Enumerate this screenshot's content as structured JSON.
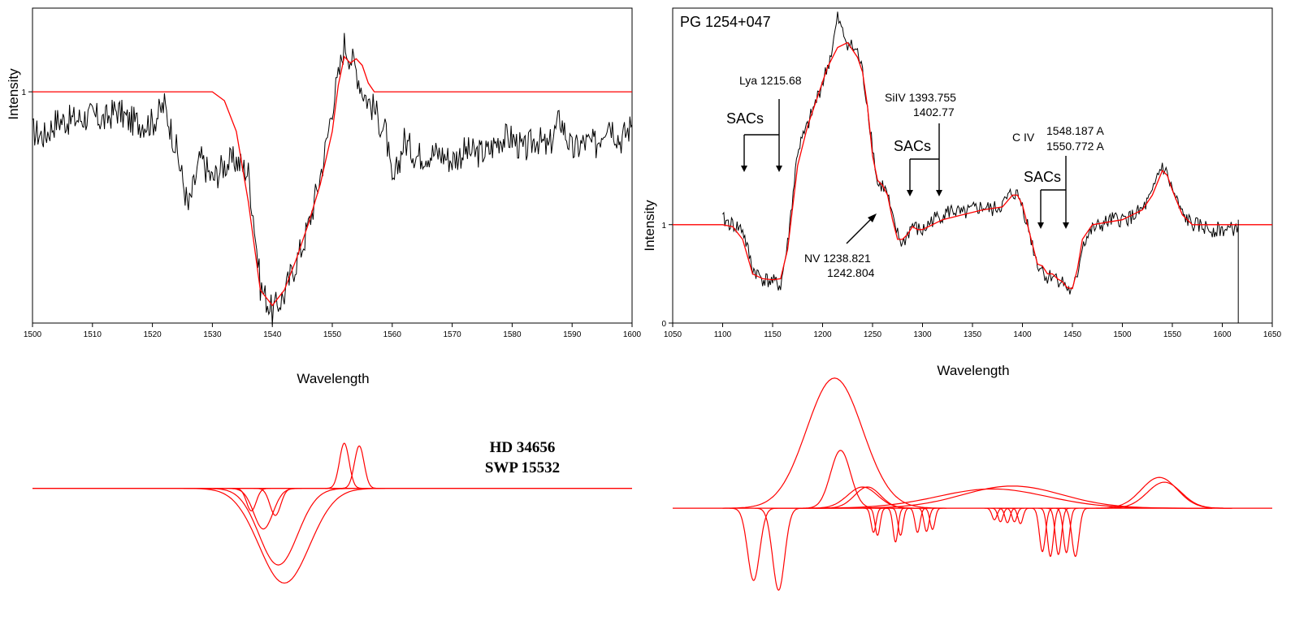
{
  "chart_data": [
    {
      "id": "left",
      "type": "line",
      "title": "",
      "xlabel": "Wavelength",
      "ylabel": "Intensity",
      "xlim": [
        1500,
        1600
      ],
      "x_ticks": [
        1500,
        1510,
        1520,
        1530,
        1540,
        1550,
        1560,
        1570,
        1580,
        1590,
        1600
      ],
      "y_ticks": [
        {
          "value": 1,
          "label": "1"
        }
      ],
      "series": [
        {
          "role": "observed",
          "color": "#000000",
          "x": [
            1500,
            1502,
            1504,
            1506,
            1508,
            1510,
            1512,
            1514,
            1516,
            1518,
            1520,
            1522,
            1524,
            1526,
            1528,
            1530,
            1532,
            1534,
            1536,
            1537,
            1538,
            1539,
            1540,
            1541,
            1542,
            1543,
            1544,
            1545,
            1546,
            1547,
            1548,
            1549,
            1550,
            1551,
            1552,
            1553,
            1554,
            1555,
            1556,
            1557,
            1558,
            1559,
            1560,
            1562,
            1564,
            1566,
            1568,
            1570,
            1572,
            1574,
            1576,
            1578,
            1580,
            1582,
            1584,
            1586,
            1588,
            1590,
            1592,
            1594,
            1596,
            1598,
            1600
          ],
          "y": [
            0.82,
            0.8,
            0.87,
            0.87,
            0.88,
            0.89,
            0.87,
            0.92,
            0.87,
            0.86,
            0.86,
            0.94,
            0.74,
            0.47,
            0.7,
            0.6,
            0.67,
            0.69,
            0.63,
            0.4,
            0.12,
            0.06,
            0.0,
            0.04,
            0.08,
            0.16,
            0.23,
            0.3,
            0.39,
            0.5,
            0.62,
            0.76,
            0.94,
            1.06,
            1.22,
            1.16,
            1.1,
            1.01,
            0.96,
            0.92,
            0.86,
            0.81,
            0.56,
            0.78,
            0.71,
            0.72,
            0.72,
            0.69,
            0.73,
            0.72,
            0.73,
            0.79,
            0.79,
            0.73,
            0.79,
            0.74,
            0.88,
            0.73,
            0.77,
            0.76,
            0.88,
            0.78,
            0.85
          ]
        },
        {
          "role": "model",
          "color": "#ff0000",
          "x": [
            1500,
            1530,
            1532,
            1534,
            1536,
            1538,
            1540,
            1542,
            1544,
            1546,
            1548,
            1550,
            1551,
            1552,
            1553,
            1554,
            1555,
            1556,
            1557,
            1600
          ],
          "y": [
            1.0,
            1.0,
            0.96,
            0.82,
            0.5,
            0.1,
            0.03,
            0.1,
            0.24,
            0.4,
            0.58,
            0.82,
            1.03,
            1.16,
            1.13,
            1.15,
            1.12,
            1.04,
            1.0,
            1.0
          ]
        }
      ]
    },
    {
      "id": "right",
      "type": "line",
      "title": "PG 1254+047",
      "xlabel": "Wavelength",
      "ylabel": "Intensity",
      "xlim": [
        1050,
        1650
      ],
      "ylim": [
        0,
        3.2
      ],
      "x_ticks": [
        1050,
        1100,
        1150,
        1200,
        1250,
        1300,
        1350,
        1400,
        1450,
        1500,
        1550,
        1600,
        1650
      ],
      "y_ticks": [
        {
          "value": 0,
          "label": "0"
        },
        {
          "value": 1,
          "label": "1"
        }
      ],
      "series": [
        {
          "role": "observed",
          "color": "#000000",
          "x": [
            1100,
            1110,
            1120,
            1130,
            1140,
            1150,
            1158,
            1165,
            1175,
            1185,
            1195,
            1205,
            1210,
            1215,
            1220,
            1225,
            1230,
            1235,
            1240,
            1245,
            1250,
            1255,
            1260,
            1265,
            1270,
            1275,
            1280,
            1285,
            1290,
            1295,
            1300,
            1310,
            1320,
            1330,
            1340,
            1350,
            1360,
            1370,
            1380,
            1390,
            1395,
            1400,
            1405,
            1410,
            1415,
            1420,
            1425,
            1430,
            1435,
            1440,
            1445,
            1450,
            1455,
            1460,
            1470,
            1480,
            1490,
            1500,
            1510,
            1520,
            1530,
            1535,
            1540,
            1545,
            1550,
            1560,
            1570,
            1580,
            1590,
            1600,
            1610,
            1616
          ],
          "y": [
            1.05,
            1.0,
            0.95,
            0.55,
            0.45,
            0.42,
            0.38,
            0.8,
            1.75,
            2.0,
            2.3,
            2.6,
            2.8,
            3.1,
            2.95,
            2.85,
            2.8,
            2.75,
            2.55,
            2.2,
            1.8,
            1.4,
            1.4,
            1.3,
            1.05,
            0.9,
            0.8,
            0.9,
            1.0,
            0.95,
            0.93,
            1.05,
            1.1,
            1.15,
            1.1,
            1.15,
            1.18,
            1.15,
            1.2,
            1.33,
            1.3,
            1.2,
            1.0,
            0.8,
            0.6,
            0.55,
            0.45,
            0.5,
            0.45,
            0.42,
            0.35,
            0.3,
            0.5,
            0.8,
            0.95,
            1.0,
            1.05,
            1.05,
            1.08,
            1.15,
            1.3,
            1.5,
            1.6,
            1.5,
            1.35,
            1.1,
            1.0,
            0.98,
            0.95,
            0.95,
            0.95,
            1.0
          ]
        },
        {
          "role": "model",
          "color": "#ff0000",
          "x": [
            1050,
            1100,
            1110,
            1120,
            1130,
            1140,
            1150,
            1158,
            1165,
            1175,
            1185,
            1195,
            1205,
            1215,
            1225,
            1235,
            1240,
            1245,
            1250,
            1255,
            1260,
            1265,
            1270,
            1275,
            1280,
            1285,
            1290,
            1295,
            1300,
            1320,
            1340,
            1360,
            1380,
            1390,
            1395,
            1400,
            1405,
            1410,
            1415,
            1420,
            1425,
            1430,
            1435,
            1440,
            1445,
            1450,
            1455,
            1460,
            1470,
            1500,
            1520,
            1530,
            1540,
            1545,
            1550,
            1560,
            1570,
            1650
          ],
          "y": [
            1.0,
            1.0,
            0.98,
            0.85,
            0.5,
            0.45,
            0.44,
            0.45,
            0.75,
            1.6,
            2.0,
            2.3,
            2.6,
            2.8,
            2.85,
            2.7,
            2.55,
            2.2,
            1.7,
            1.45,
            1.4,
            1.3,
            1.05,
            0.85,
            0.85,
            0.9,
            0.98,
            0.95,
            0.95,
            1.05,
            1.1,
            1.15,
            1.18,
            1.3,
            1.3,
            1.2,
            1.0,
            0.8,
            0.6,
            0.58,
            0.5,
            0.5,
            0.45,
            0.42,
            0.36,
            0.35,
            0.55,
            0.85,
            1.0,
            1.05,
            1.15,
            1.3,
            1.55,
            1.5,
            1.35,
            1.1,
            1.0,
            1.0
          ]
        }
      ]
    },
    {
      "id": "left-components",
      "type": "line",
      "note_labels": [
        "HD 34656",
        "SWP 15532"
      ],
      "xlim": [
        1500,
        1600
      ],
      "ylim": [
        -1.2,
        0.6
      ],
      "series": [
        {
          "role": "component",
          "color": "#ff0000",
          "kind": "absorption",
          "center": 1536.5,
          "depth": 0.25,
          "width": 0.8
        },
        {
          "role": "component",
          "color": "#ff0000",
          "kind": "absorption",
          "center": 1538.5,
          "depth": 0.45,
          "width": 1.6
        },
        {
          "role": "component",
          "color": "#ff0000",
          "kind": "absorption",
          "center": 1540.5,
          "depth": 0.3,
          "width": 0.9
        },
        {
          "role": "component",
          "color": "#ff0000",
          "kind": "absorption",
          "center": 1541.0,
          "depth": 0.85,
          "width": 3.2
        },
        {
          "role": "component",
          "color": "#ff0000",
          "kind": "absorption",
          "center": 1542.0,
          "depth": 1.05,
          "width": 4.2
        },
        {
          "role": "component",
          "color": "#ff0000",
          "kind": "emission",
          "center": 1552.0,
          "height": 0.5,
          "width": 0.8
        },
        {
          "role": "component",
          "color": "#ff0000",
          "kind": "emission",
          "center": 1554.5,
          "height": 0.47,
          "width": 0.8
        }
      ]
    },
    {
      "id": "right-components",
      "type": "line",
      "xlim": [
        1050,
        1650
      ],
      "ylim": [
        -0.9,
        1.5
      ],
      "series": [
        {
          "role": "component",
          "color": "#ff0000",
          "kind": "emission",
          "center": 1212,
          "height": 1.35,
          "width": 28
        },
        {
          "role": "component",
          "color": "#ff0000",
          "kind": "emission",
          "center": 1218,
          "height": 0.6,
          "width": 10
        },
        {
          "role": "component",
          "color": "#ff0000",
          "kind": "emission",
          "center": 1240,
          "height": 0.22,
          "width": 15
        },
        {
          "role": "component",
          "color": "#ff0000",
          "kind": "emission",
          "center": 1245,
          "height": 0.22,
          "width": 13
        },
        {
          "role": "component",
          "color": "#ff0000",
          "kind": "emission",
          "center": 1370,
          "height": 0.2,
          "width": 55
        },
        {
          "role": "component",
          "color": "#ff0000",
          "kind": "emission",
          "center": 1390,
          "height": 0.23,
          "width": 50
        },
        {
          "role": "component",
          "color": "#ff0000",
          "kind": "emission",
          "center": 1537,
          "height": 0.32,
          "width": 18
        },
        {
          "role": "component",
          "color": "#ff0000",
          "kind": "emission",
          "center": 1542,
          "height": 0.27,
          "width": 17
        },
        {
          "role": "component",
          "color": "#ff0000",
          "kind": "absorption",
          "center": 1131,
          "depth": 0.75,
          "width": 6
        },
        {
          "role": "component",
          "color": "#ff0000",
          "kind": "absorption",
          "center": 1156,
          "depth": 0.85,
          "width": 6
        },
        {
          "role": "component",
          "color": "#ff0000",
          "kind": "absorption",
          "center": 1251,
          "depth": 0.25,
          "width": 2.5
        },
        {
          "role": "component",
          "color": "#ff0000",
          "kind": "absorption",
          "center": 1255,
          "depth": 0.28,
          "width": 2.5
        },
        {
          "role": "component",
          "color": "#ff0000",
          "kind": "absorption",
          "center": 1273,
          "depth": 0.35,
          "width": 2.5
        },
        {
          "role": "component",
          "color": "#ff0000",
          "kind": "absorption",
          "center": 1278,
          "depth": 0.28,
          "width": 2.5
        },
        {
          "role": "component",
          "color": "#ff0000",
          "kind": "absorption",
          "center": 1295,
          "depth": 0.25,
          "width": 2.5
        },
        {
          "role": "component",
          "color": "#ff0000",
          "kind": "absorption",
          "center": 1304,
          "depth": 0.24,
          "width": 2.5
        },
        {
          "role": "component",
          "color": "#ff0000",
          "kind": "absorption",
          "center": 1310,
          "depth": 0.22,
          "width": 2.5
        },
        {
          "role": "component",
          "color": "#ff0000",
          "kind": "absorption",
          "center": 1372,
          "depth": 0.12,
          "width": 2.5
        },
        {
          "role": "component",
          "color": "#ff0000",
          "kind": "absorption",
          "center": 1378,
          "depth": 0.14,
          "width": 2.5
        },
        {
          "role": "component",
          "color": "#ff0000",
          "kind": "absorption",
          "center": 1385,
          "depth": 0.15,
          "width": 2.5
        },
        {
          "role": "component",
          "color": "#ff0000",
          "kind": "absorption",
          "center": 1392,
          "depth": 0.14,
          "width": 2.5
        },
        {
          "role": "component",
          "color": "#ff0000",
          "kind": "absorption",
          "center": 1398,
          "depth": 0.16,
          "width": 2.5
        },
        {
          "role": "component",
          "color": "#ff0000",
          "kind": "absorption",
          "center": 1420,
          "depth": 0.45,
          "width": 3
        },
        {
          "role": "component",
          "color": "#ff0000",
          "kind": "absorption",
          "center": 1428,
          "depth": 0.5,
          "width": 3
        },
        {
          "role": "component",
          "color": "#ff0000",
          "kind": "absorption",
          "center": 1436,
          "depth": 0.48,
          "width": 3
        },
        {
          "role": "component",
          "color": "#ff0000",
          "kind": "absorption",
          "center": 1444,
          "depth": 0.46,
          "width": 3
        },
        {
          "role": "component",
          "color": "#ff0000",
          "kind": "absorption",
          "center": 1453,
          "depth": 0.5,
          "width": 3.5
        }
      ]
    }
  ],
  "annotations": [
    {
      "lines": [
        "Lya 1215.68"
      ]
    },
    {
      "lines": [
        "SAC",
        "s"
      ]
    },
    {
      "lines": [
        "SiIV 1393.755",
        "1402.77"
      ]
    },
    {
      "lines": [
        "SAC",
        "s"
      ]
    },
    {
      "lines": [
        "C IV"
      ]
    },
    {
      "lines": [
        "1548.187 A",
        "1550.772 A"
      ]
    },
    {
      "lines": [
        "SAC",
        "s"
      ]
    },
    {
      "lines": [
        "NV 1238.821",
        "1242.804"
      ]
    }
  ]
}
